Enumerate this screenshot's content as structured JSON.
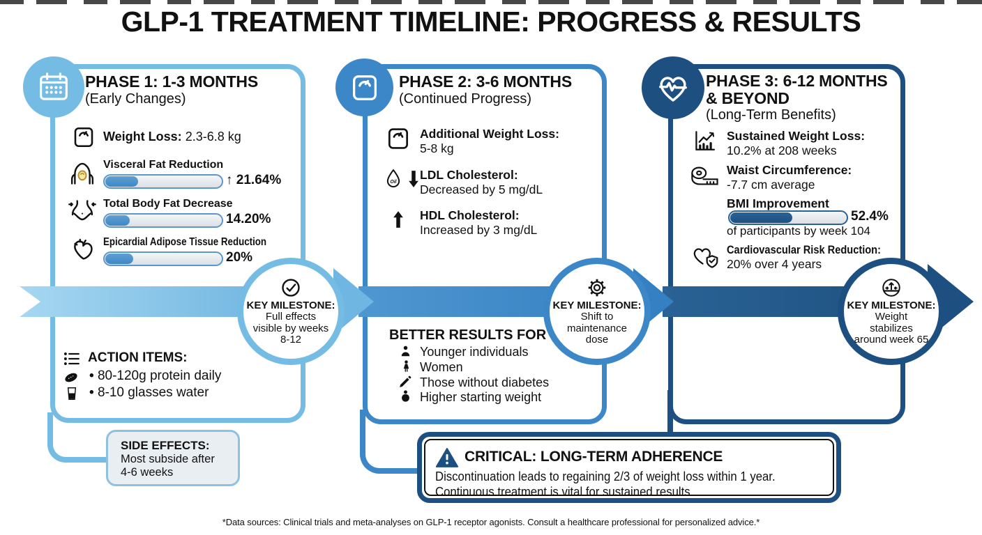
{
  "title": "GLP-1 TREATMENT TIMELINE: PROGRESS & RESULTS",
  "colors": {
    "phase1_accent": "#74bce3",
    "phase2_accent": "#3b87c8",
    "phase3_accent": "#1d5080",
    "bar_fill_blue": "#4a90c9",
    "bar_fill_navy": "#1d5080",
    "side_box_bg": "#e9eef3"
  },
  "phase1": {
    "header": "PHASE 1: 1-3 MONTHS",
    "sub": "(Early Changes)",
    "icon": "calendar-icon",
    "weight": {
      "label": "Weight Loss:",
      "value": "2.3-6.8 kg"
    },
    "bars": [
      {
        "label": "Visceral Fat Reduction",
        "value": "↑ 21.64%",
        "pct": 28
      },
      {
        "label": "Total Body Fat Decrease",
        "value": "14.20%",
        "pct": 21
      },
      {
        "label": "Epicardial Adipose Tissue Reduction",
        "value": "20%",
        "pct": 24
      }
    ],
    "actions": {
      "title": "ACTION ITEMS:",
      "items": [
        "80-120g protein daily",
        "8-10 glasses water"
      ]
    }
  },
  "side_effects": {
    "title": "SIDE EFFECTS:",
    "body": "Most subside after 4-6 weeks"
  },
  "milestones": [
    {
      "title": "KEY MILESTONE:",
      "body": "Full effects visible by weeks 8-12",
      "icon": "check-circle-icon"
    },
    {
      "title": "KEY MILESTONE:",
      "body": "Shift to maintenance dose",
      "icon": "gear-icon"
    },
    {
      "title": "KEY MILESTONE:",
      "body": "Weight stabilizes around week 65",
      "icon": "stabilize-icon"
    }
  ],
  "phase2": {
    "header": "PHASE 2: 3-6 MONTHS",
    "sub": "(Continued Progress)",
    "icon": "scale-icon",
    "rows": [
      {
        "label": "Additional Weight Loss:",
        "value": "5-8 kg"
      },
      {
        "label": "LDL Cholesterol:",
        "value": "Decreased by 5 mg/dL"
      },
      {
        "label": "HDL Cholesterol:",
        "value": "Increased by 3 mg/dL"
      }
    ],
    "better": {
      "title": "BETTER RESULTS FOR",
      "items": [
        "Younger individuals",
        "Women",
        "Those without diabetes",
        "Higher starting weight"
      ]
    }
  },
  "phase3": {
    "header1": "PHASE 3: 6-12 MONTHS",
    "header2": "& BEYOND",
    "sub": "(Long-Term Benefits)",
    "icon": "heart-pulse-icon",
    "rows": [
      {
        "label": "Sustained Weight Loss:",
        "value": "10.2% at 208 weeks"
      },
      {
        "label": "Waist Circumference:",
        "value": "-7.7 cm average"
      }
    ],
    "bmi": {
      "label": "BMI Improvement",
      "value": "52.4%",
      "pct": 53,
      "note": "of participants by week 104"
    },
    "cardio": {
      "label": "Cardiovascular Risk Reduction:",
      "value": "20% over 4 years"
    }
  },
  "critical": {
    "title": "CRITICAL: LONG-TERM ADHERENCE",
    "line1": "Discontinuation leads to regaining 2/3 of weight loss within 1 year.",
    "line2": "Continuous treatment is vital for sustained results."
  },
  "footer": "*Data sources: Clinical trials and meta-analyses on GLP-1 receptor agonists. Consult a healthcare professional for personalized advice.*"
}
